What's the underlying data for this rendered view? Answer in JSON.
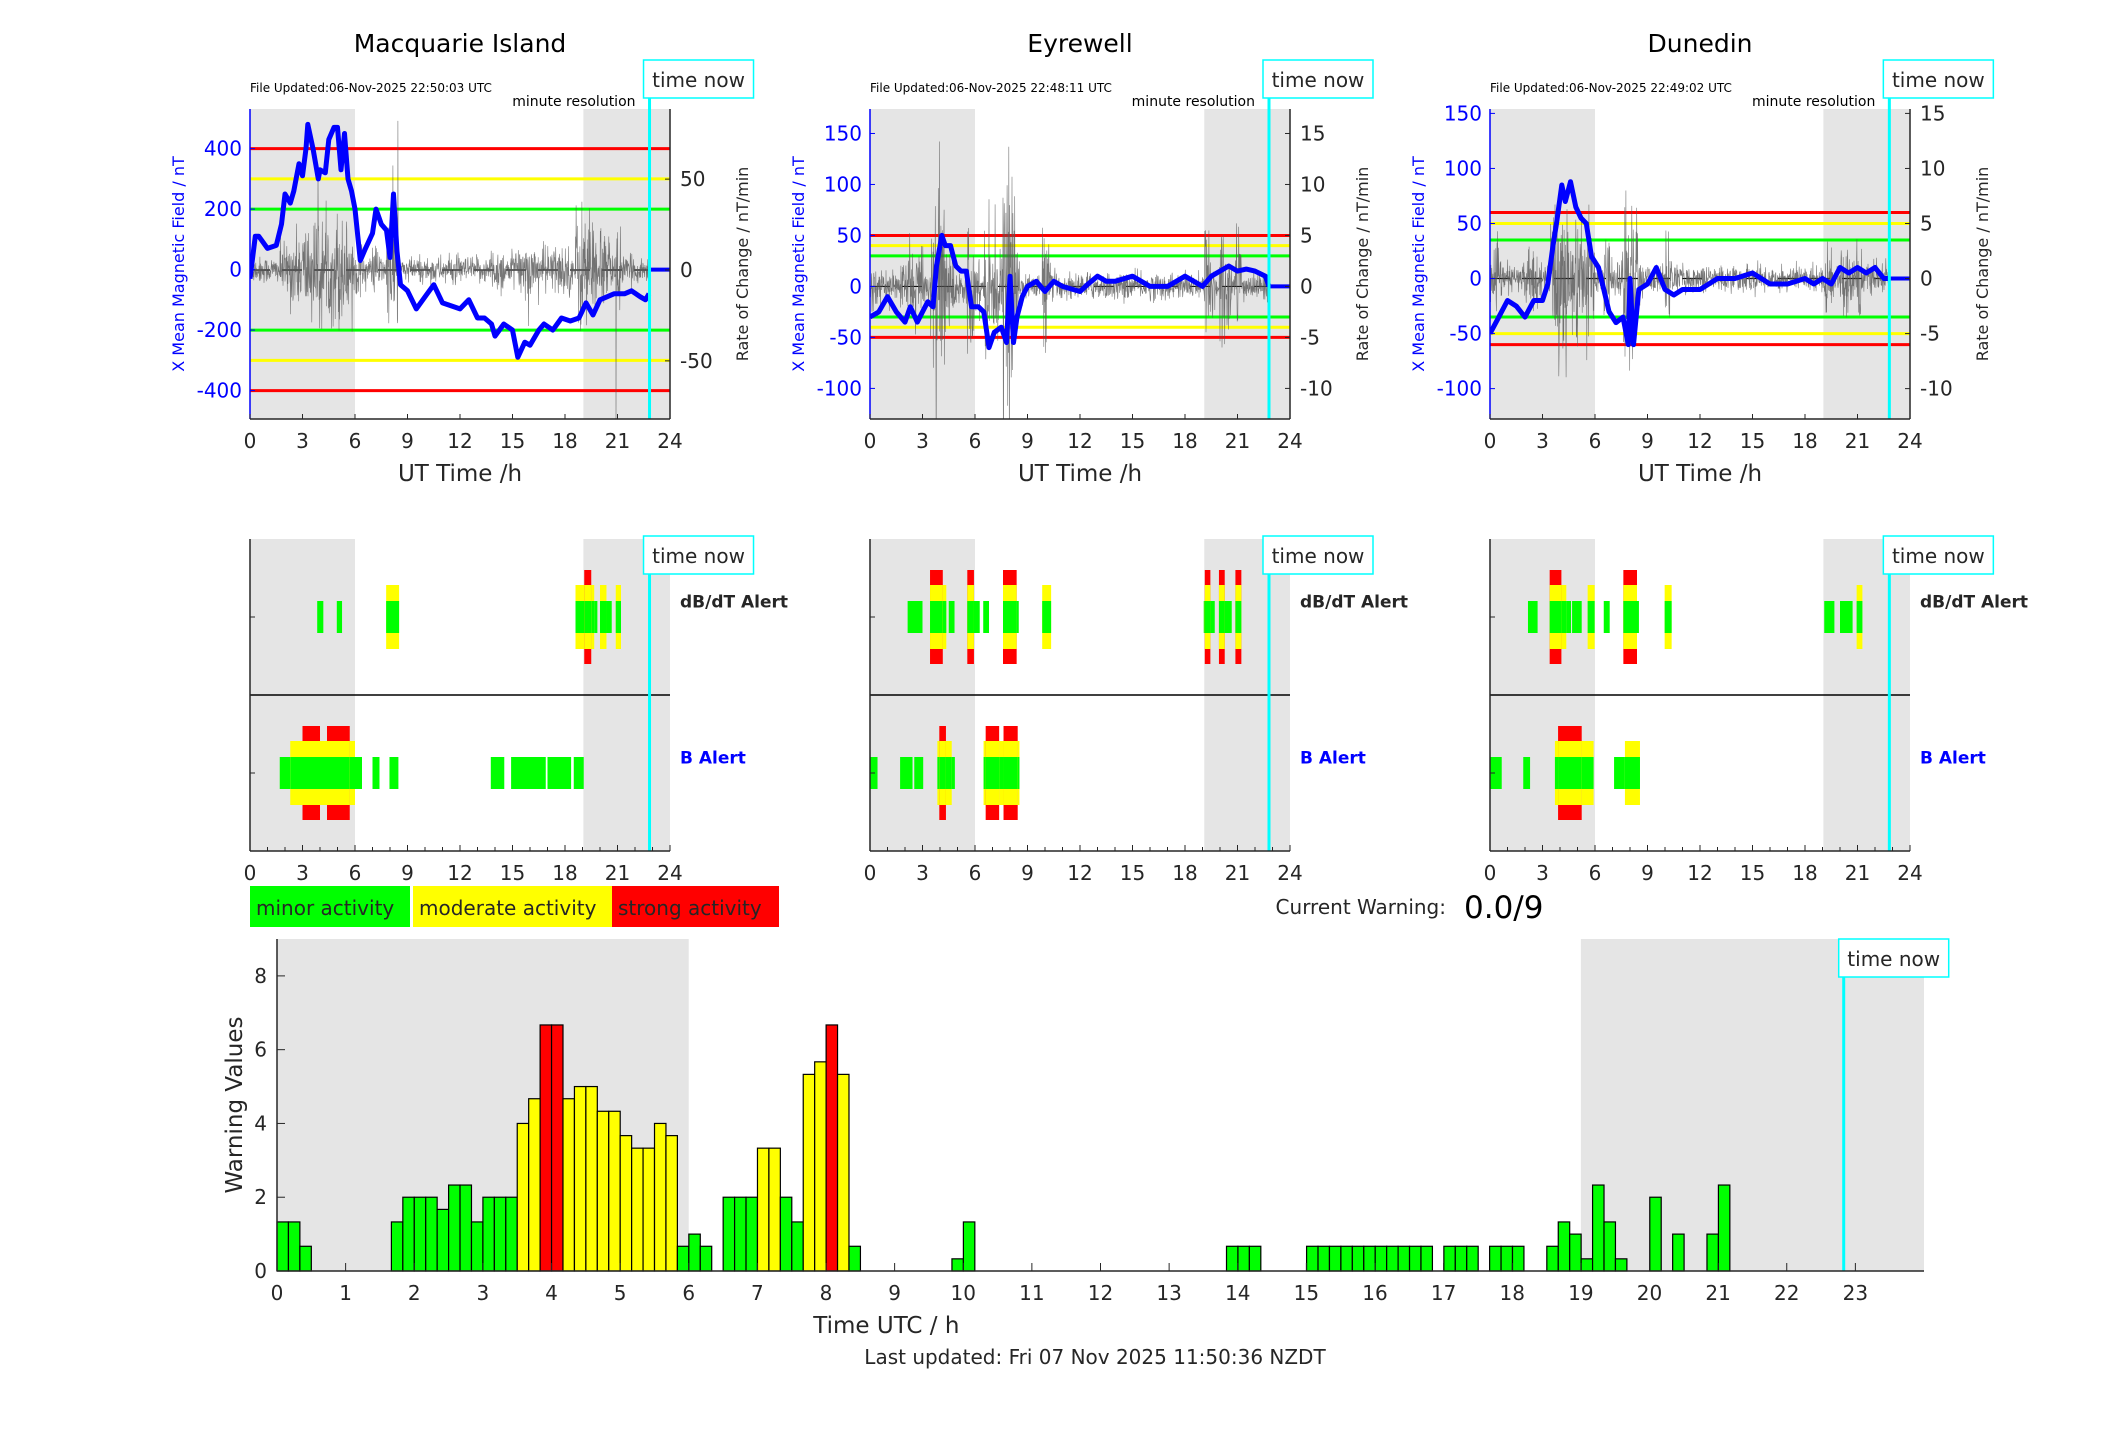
{
  "colors": {
    "minor": "#00ff00",
    "moderate": "#ffff00",
    "strong": "#ff0000",
    "field": "#0000ff",
    "time_now": "#00ffff",
    "night": "#e5e5e5",
    "rate": "#555555"
  },
  "stations": [
    {
      "name": "Macquarie Island",
      "file_updated": "File Updated:06-Nov-2025 22:50:03 UTC",
      "resolution_label": "minute resolution",
      "time_now_label": "time now",
      "left_ylabel": "X Mean Magnetic Field / nT",
      "right_ylabel": "Rate of Change / nT/min",
      "xlabel": "UT Time /h",
      "ylim": [
        -494,
        531
      ],
      "right_ylim": [
        -82,
        88.6
      ],
      "yticks": [
        -400,
        -200,
        0,
        200,
        400
      ],
      "right_yticks": [
        -50,
        0,
        50
      ],
      "xticks": [
        0,
        3,
        6,
        9,
        12,
        15,
        18,
        21,
        24
      ],
      "thresholds": {
        "minor": 200,
        "moderate": 300,
        "strong": 400
      },
      "night_shading": [
        [
          0,
          6
        ],
        [
          19.05,
          24
        ]
      ],
      "time_now": 22.83,
      "x_field": [
        [
          0,
          -30
        ],
        [
          0.3,
          110
        ],
        [
          0.5,
          110
        ],
        [
          1,
          70
        ],
        [
          1.5,
          80
        ],
        [
          1.8,
          150
        ],
        [
          2,
          250
        ],
        [
          2.3,
          220
        ],
        [
          2.5,
          260
        ],
        [
          2.8,
          350
        ],
        [
          3,
          310
        ],
        [
          3.2,
          400
        ],
        [
          3.3,
          480
        ],
        [
          3.6,
          400
        ],
        [
          3.9,
          300
        ],
        [
          4,
          330
        ],
        [
          4.3,
          320
        ],
        [
          4.5,
          430
        ],
        [
          4.8,
          470
        ],
        [
          5,
          470
        ],
        [
          5.2,
          330
        ],
        [
          5.4,
          450
        ],
        [
          5.6,
          300
        ],
        [
          5.8,
          260
        ],
        [
          6,
          200
        ],
        [
          6.3,
          30
        ],
        [
          6.6,
          70
        ],
        [
          7,
          120
        ],
        [
          7.2,
          200
        ],
        [
          7.5,
          150
        ],
        [
          7.8,
          130
        ],
        [
          8,
          40
        ],
        [
          8.2,
          250
        ],
        [
          8.4,
          60
        ],
        [
          8.6,
          -50
        ],
        [
          9,
          -70
        ],
        [
          9.5,
          -130
        ],
        [
          10,
          -90
        ],
        [
          10.5,
          -50
        ],
        [
          11,
          -110
        ],
        [
          11.5,
          -120
        ],
        [
          12,
          -130
        ],
        [
          12.5,
          -100
        ],
        [
          13,
          -160
        ],
        [
          13.4,
          -160
        ],
        [
          13.8,
          -180
        ],
        [
          14,
          -220
        ],
        [
          14.5,
          -180
        ],
        [
          15,
          -200
        ],
        [
          15.3,
          -290
        ],
        [
          15.7,
          -240
        ],
        [
          16,
          -250
        ],
        [
          16.5,
          -200
        ],
        [
          16.8,
          -180
        ],
        [
          17.3,
          -200
        ],
        [
          17.8,
          -160
        ],
        [
          18.3,
          -170
        ],
        [
          18.8,
          -160
        ],
        [
          19.2,
          -110
        ],
        [
          19.6,
          -150
        ],
        [
          20,
          -100
        ],
        [
          20.4,
          -90
        ],
        [
          20.8,
          -80
        ],
        [
          21.4,
          -80
        ],
        [
          21.8,
          -70
        ],
        [
          22.3,
          -90
        ],
        [
          22.6,
          -100
        ],
        [
          22.8,
          -80
        ]
      ],
      "dbdt_alerts": [
        [
          3.84,
          4.19,
          1
        ],
        [
          4.96,
          5.26,
          1
        ],
        [
          7.78,
          8.52,
          2
        ],
        [
          18.6,
          19.1,
          2
        ],
        [
          19.1,
          19.5,
          3
        ],
        [
          19.5,
          19.67,
          2
        ],
        [
          19.67,
          19.85,
          1
        ],
        [
          20.0,
          20.37,
          2
        ],
        [
          20.37,
          20.67,
          1
        ],
        [
          20.9,
          21.2,
          2
        ]
      ],
      "b_alerts": [
        [
          1.7,
          2.3,
          1
        ],
        [
          2.3,
          3.0,
          2
        ],
        [
          3.0,
          4.0,
          3
        ],
        [
          4.0,
          4.4,
          2
        ],
        [
          4.4,
          5.7,
          3
        ],
        [
          5.7,
          6.0,
          2
        ],
        [
          6.0,
          6.4,
          1
        ],
        [
          7.0,
          7.4,
          1
        ],
        [
          7.97,
          8.48,
          1
        ],
        [
          13.76,
          14.53,
          1
        ],
        [
          14.92,
          16.9,
          1
        ],
        [
          17.0,
          18.35,
          1
        ],
        [
          18.5,
          19.07,
          1
        ]
      ]
    },
    {
      "name": "Eyrewell",
      "file_updated": "File Updated:06-Nov-2025 22:48:11 UTC",
      "resolution_label": "minute resolution",
      "time_now_label": "time now",
      "left_ylabel": "X Mean Magnetic Field / nT",
      "right_ylabel": "Rate of Change / nT/min",
      "xlabel": "UT Time /h",
      "ylim": [
        -130,
        174
      ],
      "right_ylim": [
        -13,
        17.4
      ],
      "yticks": [
        -100,
        -50,
        0,
        50,
        100,
        150
      ],
      "right_yticks": [
        -10,
        -5,
        0,
        5,
        10,
        15
      ],
      "xticks": [
        0,
        3,
        6,
        9,
        12,
        15,
        18,
        21,
        24
      ],
      "thresholds": {
        "minor": 30,
        "moderate": 40,
        "strong": 50
      },
      "night_shading": [
        [
          0,
          6
        ],
        [
          19.1,
          24
        ]
      ],
      "time_now": 22.8,
      "x_field": [
        [
          0,
          -30
        ],
        [
          0.5,
          -25
        ],
        [
          1,
          -10
        ],
        [
          1.5,
          -25
        ],
        [
          2,
          -35
        ],
        [
          2.3,
          -20
        ],
        [
          2.7,
          -35
        ],
        [
          3,
          -25
        ],
        [
          3.3,
          -15
        ],
        [
          3.6,
          -20
        ],
        [
          3.8,
          20
        ],
        [
          4.1,
          50
        ],
        [
          4.3,
          40
        ],
        [
          4.6,
          40
        ],
        [
          4.9,
          20
        ],
        [
          5.2,
          15
        ],
        [
          5.5,
          15
        ],
        [
          5.8,
          -20
        ],
        [
          6.2,
          -20
        ],
        [
          6.5,
          -25
        ],
        [
          6.8,
          -60
        ],
        [
          7.1,
          -45
        ],
        [
          7.5,
          -40
        ],
        [
          7.8,
          -55
        ],
        [
          8,
          10
        ],
        [
          8.2,
          -55
        ],
        [
          8.4,
          -30
        ],
        [
          8.7,
          -10
        ],
        [
          9,
          0
        ],
        [
          9.5,
          5
        ],
        [
          10,
          -5
        ],
        [
          10.5,
          5
        ],
        [
          11,
          0
        ],
        [
          12,
          -5
        ],
        [
          12.5,
          3
        ],
        [
          13,
          10
        ],
        [
          13.5,
          5
        ],
        [
          14,
          5
        ],
        [
          15,
          10
        ],
        [
          15.5,
          5
        ],
        [
          16,
          0
        ],
        [
          17,
          0
        ],
        [
          17.5,
          5
        ],
        [
          18,
          10
        ],
        [
          18.5,
          5
        ],
        [
          19,
          0
        ],
        [
          19.5,
          10
        ],
        [
          20,
          15
        ],
        [
          20.5,
          20
        ],
        [
          21,
          15
        ],
        [
          21.5,
          17
        ],
        [
          22,
          15
        ],
        [
          22.6,
          10
        ],
        [
          22.8,
          0
        ]
      ],
      "dbdt_alerts": [
        [
          2.15,
          3.0,
          1
        ],
        [
          3.43,
          4.16,
          3
        ],
        [
          4.16,
          4.36,
          2
        ],
        [
          4.5,
          4.83,
          1
        ],
        [
          5.56,
          5.94,
          3
        ],
        [
          5.94,
          6.27,
          1
        ],
        [
          6.47,
          6.8,
          1
        ],
        [
          7.6,
          8.38,
          3
        ],
        [
          8.38,
          8.5,
          1
        ],
        [
          9.84,
          10.35,
          2
        ],
        [
          19.07,
          19.13,
          1
        ],
        [
          19.13,
          19.45,
          3
        ],
        [
          19.45,
          19.7,
          1
        ],
        [
          19.94,
          20.27,
          3
        ],
        [
          20.27,
          20.67,
          1
        ],
        [
          20.88,
          21.22,
          3
        ]
      ],
      "b_alerts": [
        [
          0,
          0.43,
          1
        ],
        [
          1.72,
          2.43,
          1
        ],
        [
          2.53,
          3.04,
          1
        ],
        [
          3.85,
          3.96,
          2
        ],
        [
          3.96,
          4.34,
          3
        ],
        [
          4.34,
          4.67,
          2
        ],
        [
          4.67,
          4.85,
          1
        ],
        [
          6.49,
          6.61,
          2
        ],
        [
          6.61,
          7.38,
          3
        ],
        [
          7.38,
          7.63,
          2
        ],
        [
          7.63,
          8.44,
          3
        ],
        [
          8.44,
          8.54,
          2
        ]
      ]
    },
    {
      "name": "Dunedin",
      "file_updated": "File Updated:06-Nov-2025 22:49:02 UTC",
      "resolution_label": "minute resolution",
      "time_now_label": "time now",
      "left_ylabel": "X Mean Magnetic Field / nT",
      "right_ylabel": "Rate of Change / nT/min",
      "xlabel": "UT Time /h",
      "ylim": [
        -127.6,
        154
      ],
      "right_ylim": [
        -12.76,
        15.4
      ],
      "yticks": [
        -100,
        -50,
        0,
        50,
        100,
        150
      ],
      "right_yticks": [
        -10,
        -5,
        0,
        5,
        10,
        15
      ],
      "xticks": [
        0,
        3,
        6,
        9,
        12,
        15,
        18,
        21,
        24
      ],
      "thresholds": {
        "minor": 35,
        "moderate": 50,
        "strong": 60
      },
      "night_shading": [
        [
          0,
          6
        ],
        [
          19.05,
          24
        ]
      ],
      "time_now": 22.82,
      "x_field": [
        [
          0,
          -50
        ],
        [
          0.5,
          -35
        ],
        [
          1,
          -20
        ],
        [
          1.5,
          -25
        ],
        [
          2,
          -35
        ],
        [
          2.5,
          -20
        ],
        [
          3,
          -20
        ],
        [
          3.3,
          -5
        ],
        [
          3.6,
          30
        ],
        [
          3.8,
          50
        ],
        [
          4.1,
          85
        ],
        [
          4.3,
          70
        ],
        [
          4.6,
          88
        ],
        [
          4.9,
          65
        ],
        [
          5.2,
          55
        ],
        [
          5.5,
          50
        ],
        [
          5.8,
          20
        ],
        [
          6.2,
          10
        ],
        [
          6.5,
          -10
        ],
        [
          6.8,
          -30
        ],
        [
          7.2,
          -40
        ],
        [
          7.6,
          -35
        ],
        [
          7.9,
          -60
        ],
        [
          8.0,
          0
        ],
        [
          8.2,
          -60
        ],
        [
          8.5,
          -10
        ],
        [
          9,
          -5
        ],
        [
          9.5,
          10
        ],
        [
          10,
          -10
        ],
        [
          10.5,
          -15
        ],
        [
          11,
          -10
        ],
        [
          12,
          -10
        ],
        [
          12.5,
          -5
        ],
        [
          13,
          0
        ],
        [
          14,
          0
        ],
        [
          15,
          5
        ],
        [
          15.5,
          0
        ],
        [
          16,
          -5
        ],
        [
          17,
          -5
        ],
        [
          18,
          0
        ],
        [
          18.5,
          -5
        ],
        [
          19,
          0
        ],
        [
          19.5,
          -5
        ],
        [
          20,
          10
        ],
        [
          20.5,
          5
        ],
        [
          21,
          10
        ],
        [
          21.5,
          5
        ],
        [
          22,
          10
        ],
        [
          22.5,
          0
        ],
        [
          22.82,
          0
        ]
      ],
      "dbdt_alerts": [
        [
          2.17,
          2.72,
          1
        ],
        [
          3.41,
          4.08,
          3
        ],
        [
          4.08,
          4.36,
          2
        ],
        [
          4.36,
          4.63,
          1
        ],
        [
          4.69,
          5.24,
          1
        ],
        [
          5.58,
          5.98,
          2
        ],
        [
          6.5,
          6.84,
          1
        ],
        [
          7.62,
          8.4,
          3
        ],
        [
          8.4,
          8.51,
          1
        ],
        [
          9.98,
          10.38,
          2
        ],
        [
          19.1,
          19.68,
          1
        ],
        [
          20.0,
          20.72,
          1
        ],
        [
          20.95,
          21.28,
          2
        ]
      ],
      "b_alerts": [
        [
          0,
          0.67,
          1
        ],
        [
          1.9,
          2.29,
          1
        ],
        [
          3.71,
          3.89,
          2
        ],
        [
          3.89,
          5.24,
          3
        ],
        [
          5.24,
          5.92,
          2
        ],
        [
          7.09,
          7.71,
          1
        ],
        [
          7.71,
          8.57,
          2
        ]
      ]
    }
  ],
  "alert_labels": {
    "dbdt": "dB/dT Alert",
    "b": "B Alert"
  },
  "legend": [
    {
      "label": "minor activity",
      "level": "minor"
    },
    {
      "label": "moderate activity",
      "level": "moderate"
    },
    {
      "label": "strong activity",
      "level": "strong"
    }
  ],
  "current_warning": {
    "label": "Current Warning:",
    "value": "0.0/9"
  },
  "chart_data": {
    "type": "bar",
    "xlabel": "Time UTC / h",
    "ylabel": "Warning Values",
    "xlim": [
      0,
      24
    ],
    "ylim": [
      0,
      9
    ],
    "xticks": [
      0,
      1,
      2,
      3,
      4,
      5,
      6,
      7,
      8,
      9,
      10,
      11,
      12,
      13,
      14,
      15,
      16,
      17,
      18,
      19,
      20,
      21,
      22,
      23
    ],
    "yticks": [
      0,
      2,
      4,
      6,
      8
    ],
    "bin_width_h": 0.1667,
    "values": [
      1.33,
      1.33,
      0.67,
      0,
      0,
      0,
      0,
      0,
      0,
      0,
      1.33,
      2,
      2,
      2,
      1.67,
      2.33,
      2.33,
      1.33,
      2,
      2,
      2,
      4,
      4.67,
      6.67,
      6.67,
      4.67,
      5,
      5,
      4.33,
      4.33,
      3.67,
      3.33,
      3.33,
      4,
      3.67,
      0.67,
      1,
      0.67,
      0,
      2,
      2,
      2,
      3.33,
      3.33,
      2,
      1.33,
      5.33,
      5.67,
      6.67,
      5.33,
      0.67,
      0,
      0,
      0,
      0,
      0,
      0,
      0,
      0,
      0.33,
      1.33,
      0,
      0,
      0,
      0,
      0,
      0,
      0,
      0,
      0,
      0,
      0,
      0,
      0,
      0,
      0,
      0,
      0,
      0,
      0,
      0,
      0,
      0,
      0.67,
      0.67,
      0.67,
      0,
      0,
      0,
      0,
      0.67,
      0.67,
      0.67,
      0.67,
      0.67,
      0.67,
      0.67,
      0.67,
      0.67,
      0.67,
      0.67,
      0,
      0.67,
      0.67,
      0.67,
      0,
      0.67,
      0.67,
      0.67,
      0,
      0,
      0.67,
      1.33,
      1,
      0.33,
      2.33,
      1.33,
      0.33,
      0,
      0,
      2,
      0,
      1,
      0,
      0,
      1,
      2.33,
      0,
      0,
      0,
      0,
      0,
      0,
      0,
      0,
      0,
      0,
      0
    ],
    "level_colors": {
      "minor": "#00ff00",
      "moderate": "#ffff00",
      "strong": "#ff0000"
    },
    "night_shading": [
      [
        0,
        6
      ],
      [
        19,
        24
      ]
    ],
    "time_now": 22.83,
    "time_now_label": "time now",
    "grid": false
  },
  "footer": "Last updated: Fri 07 Nov 2025 11:50:36 NZDT"
}
